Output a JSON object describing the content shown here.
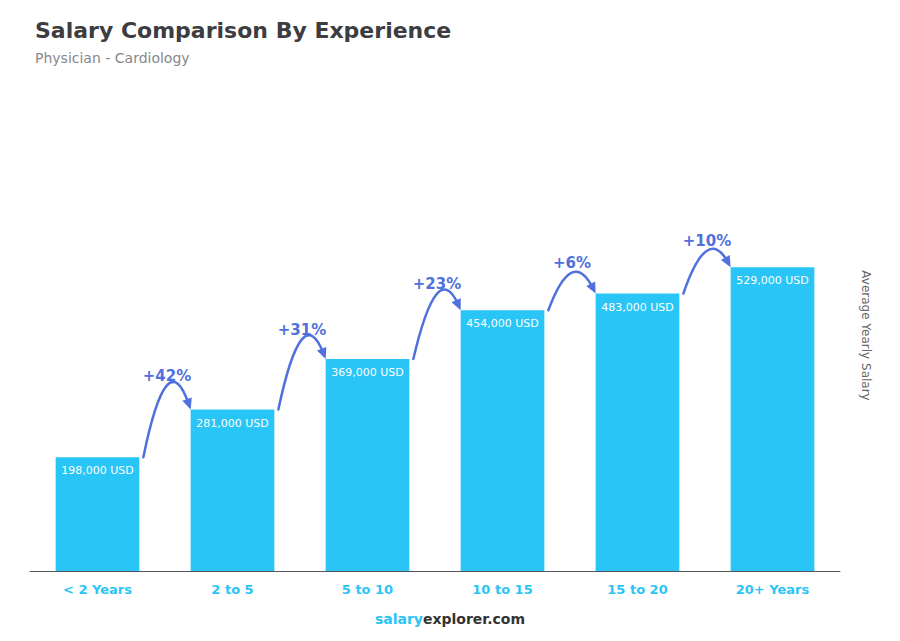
{
  "chart_data": {
    "type": "bar",
    "title": "Salary Comparison By Experience",
    "subtitle": "Physician - Cardiology",
    "categories": [
      "< 2 Years",
      "2 to 5",
      "5 to 10",
      "10 to 15",
      "15 to 20",
      "20+ Years"
    ],
    "values": [
      198000,
      281000,
      369000,
      454000,
      483000,
      529000
    ],
    "value_labels": [
      "198,000 USD",
      "281,000 USD",
      "369,000 USD",
      "454,000 USD",
      "483,000 USD",
      "529,000 USD"
    ],
    "data_labels": true,
    "color": "#29c5f6",
    "ylabel": "Average Yearly Salary",
    "annotations": [
      "+42%",
      "+31%",
      "+23%",
      "+6%",
      "+10%"
    ],
    "footer": [
      "salary",
      "explorer.com"
    ],
    "ylim": [
      0,
      819950
    ],
    "tick_labels": "x",
    "grid": false
  }
}
